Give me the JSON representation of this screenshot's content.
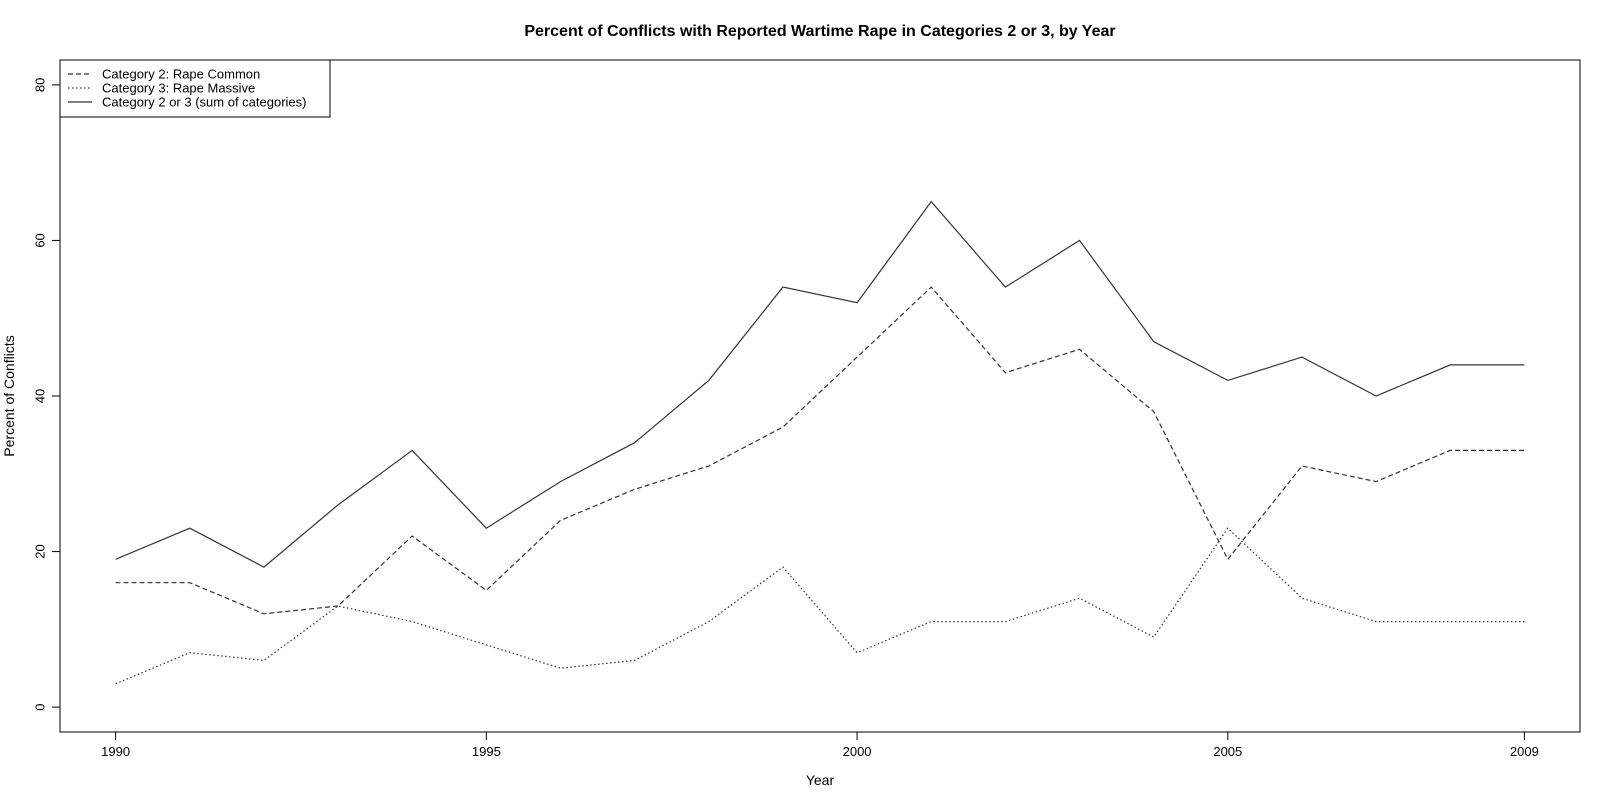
{
  "chart_data": {
    "type": "line",
    "title": "Percent of Conflicts with Reported Wartime Rape in Categories 2 or 3, by Year",
    "xlabel": "Year",
    "ylabel": "Percent of Conflicts",
    "xlim": [
      1989.25,
      2009.75
    ],
    "ylim": [
      -3.2,
      83.2
    ],
    "x_ticks": [
      1990,
      1995,
      2000,
      2005,
      2009
    ],
    "y_ticks": [
      0,
      20,
      40,
      60,
      80
    ],
    "grid": false,
    "legend_position": "top-left",
    "x": [
      1990,
      1991,
      1992,
      1993,
      1994,
      1995,
      1996,
      1997,
      1998,
      1999,
      2000,
      2001,
      2002,
      2003,
      2004,
      2005,
      2006,
      2007,
      2008,
      2009
    ],
    "series": [
      {
        "name": "Category 2: Rape Common",
        "line_style": "dashed",
        "color": "#333333",
        "values": [
          16,
          16,
          12,
          13,
          22,
          15,
          24,
          28,
          31,
          36,
          45,
          54,
          43,
          46,
          38,
          19,
          31,
          29,
          33,
          33
        ]
      },
      {
        "name": "Category 3: Rape Massive",
        "line_style": "dotted",
        "color": "#333333",
        "values": [
          3,
          7,
          6,
          13,
          11,
          8,
          5,
          6,
          11,
          18,
          7,
          11,
          11,
          14,
          9,
          23,
          14,
          11,
          11,
          11
        ]
      },
      {
        "name": "Category 2 or 3 (sum of categories)",
        "line_style": "solid",
        "color": "#333333",
        "values": [
          19,
          23,
          18,
          26,
          33,
          23,
          29,
          34,
          42,
          54,
          52,
          65,
          54,
          60,
          47,
          42,
          45,
          40,
          44,
          44
        ]
      }
    ]
  }
}
